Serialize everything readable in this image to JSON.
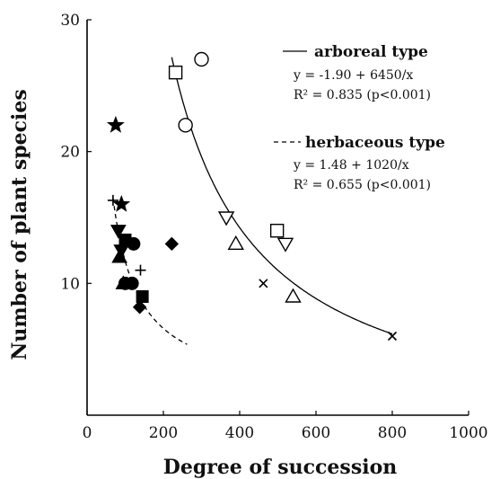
{
  "chart_data": {
    "type": "scatter",
    "xlabel": "Degree of succession",
    "ylabel": "Number of plant species",
    "xlim": [
      0,
      1000
    ],
    "ylim": [
      0,
      30
    ],
    "x_ticks": [
      "0",
      "200",
      "400",
      "600",
      "800",
      "1000"
    ],
    "y_ticks": [
      "10",
      "20",
      "30"
    ],
    "grid": false,
    "legend_position": "top-right",
    "curves": [
      {
        "name": "arboreal type",
        "equation": "y = -1.90 + 6450/x",
        "r2": "R² = 0.835 (p<0.001)",
        "style": "solid",
        "x_range": [
          222,
          800
        ]
      },
      {
        "name": "herbaceous type",
        "equation": "y = 1.48 + 1020/x",
        "r2": "R² = 0.655 (p<0.001)",
        "style": "dashed",
        "x_range": [
          68,
          262
        ]
      }
    ],
    "series": [
      {
        "marker": "open-circle",
        "points": [
          [
            300,
            27
          ],
          [
            258,
            22
          ]
        ]
      },
      {
        "marker": "open-square",
        "points": [
          [
            232,
            26
          ],
          [
            498,
            14
          ]
        ]
      },
      {
        "marker": "open-triangle-down",
        "points": [
          [
            365,
            15
          ],
          [
            520,
            13
          ]
        ]
      },
      {
        "marker": "open-triangle-up",
        "points": [
          [
            390,
            13
          ],
          [
            540,
            9
          ]
        ]
      },
      {
        "marker": "cross",
        "points": [
          [
            462,
            10
          ],
          [
            800,
            6
          ]
        ]
      },
      {
        "marker": "filled-star",
        "points": [
          [
            75,
            22
          ],
          [
            90,
            16
          ]
        ]
      },
      {
        "marker": "plus",
        "points": [
          [
            68,
            16.3
          ],
          [
            140,
            11
          ]
        ]
      },
      {
        "marker": "filled-triangle-down",
        "points": [
          [
            82,
            14
          ],
          [
            90,
            12.5
          ]
        ]
      },
      {
        "marker": "filled-square",
        "points": [
          [
            100,
            13.3
          ],
          [
            145,
            9
          ]
        ]
      },
      {
        "marker": "filled-circle",
        "points": [
          [
            122,
            13
          ],
          [
            100,
            10
          ],
          [
            118,
            10
          ]
        ]
      },
      {
        "marker": "filled-triangle-up",
        "points": [
          [
            85,
            12
          ],
          [
            95,
            10
          ]
        ]
      },
      {
        "marker": "filled-diamond",
        "points": [
          [
            222,
            13
          ],
          [
            138,
            8.2
          ]
        ]
      }
    ]
  }
}
